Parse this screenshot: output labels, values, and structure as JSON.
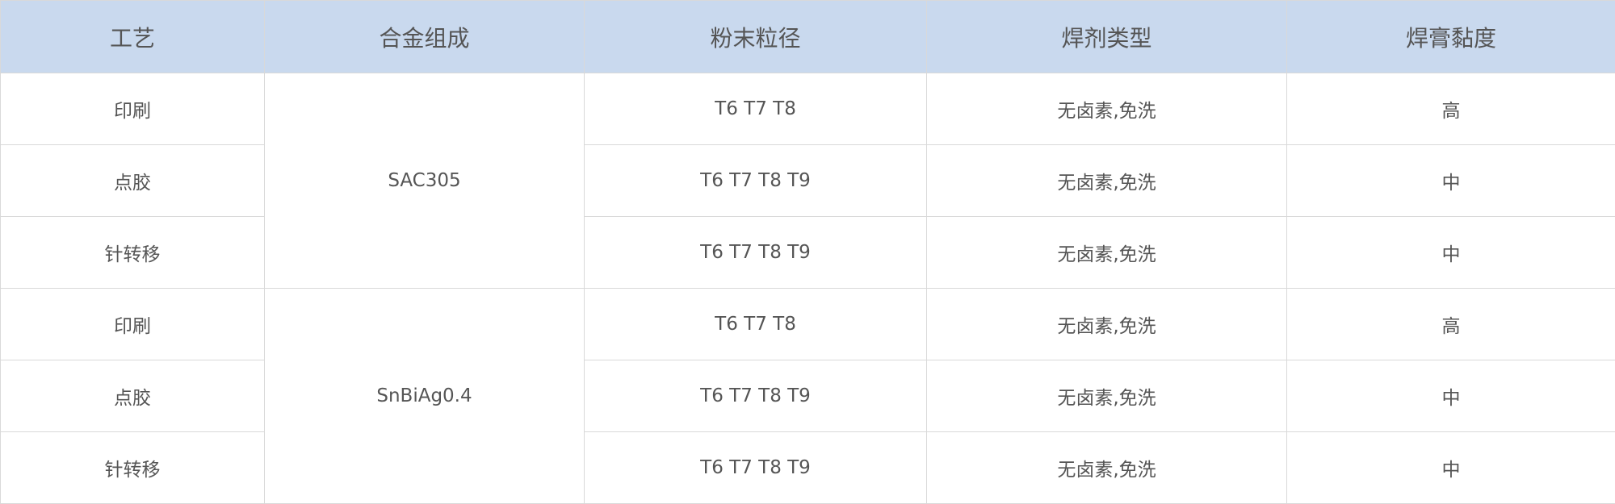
{
  "table": {
    "header": [
      "工艺",
      "合金组成",
      "粉末粒径",
      "焊剂类型",
      "焊膏黏度"
    ],
    "groups": [
      {
        "alloy": "SAC305",
        "rows": [
          {
            "process": "印刷",
            "powder": "T6  T7  T8",
            "flux": "无卤素,免洗",
            "viscosity": "高"
          },
          {
            "process": "点胶",
            "powder": "T6  T7  T8  T9",
            "flux": "无卤素,免洗",
            "viscosity": "中"
          },
          {
            "process": "针转移",
            "powder": "T6  T7  T8  T9",
            "flux": "无卤素,免洗",
            "viscosity": "中"
          }
        ]
      },
      {
        "alloy": "SnBiAg0.4",
        "rows": [
          {
            "process": "印刷",
            "powder": "T6  T7  T8",
            "flux": "无卤素,免洗",
            "viscosity": "高"
          },
          {
            "process": "点胶",
            "powder": "T6  T7  T8  T9",
            "flux": "无卤素,免洗",
            "viscosity": "中"
          },
          {
            "process": "针转移",
            "powder": "T6  T7  T8  T9",
            "flux": "无卤素,免洗",
            "viscosity": "中"
          }
        ]
      }
    ]
  },
  "colors": {
    "header_bg": "#c9d9ee",
    "border": "#d9d9d9",
    "text": "#555555"
  }
}
